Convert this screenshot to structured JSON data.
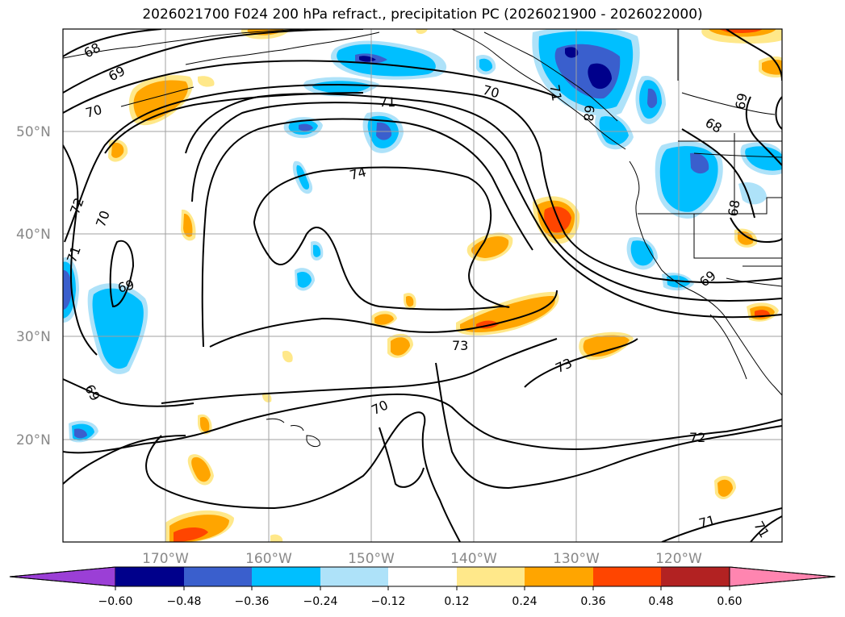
{
  "title": "2026021700 F024 200 hPa refract., precipitation PC (2026021900 - 2026022000)",
  "lat_labels": [
    "50°N",
    "40°N",
    "30°N",
    "20°N"
  ],
  "lon_labels": [
    "170°W",
    "160°W",
    "150°W",
    "140°W",
    "130°W",
    "120°W"
  ],
  "colorbar": {
    "tick_labels": [
      "−0.60",
      "−0.48",
      "−0.36",
      "−0.24",
      "−0.12",
      "0.12",
      "0.24",
      "0.36",
      "0.48",
      "0.60"
    ],
    "colors": [
      "#9b3fd6",
      "#00008b",
      "#3a5fcd",
      "#00bfff",
      "#aee2f9",
      "#ffffff",
      "#ffe88a",
      "#ffa500",
      "#ff4500",
      "#b22222",
      "#ff85b0"
    ]
  },
  "contour_labels": [
    {
      "text": "68"
    },
    {
      "text": "69"
    },
    {
      "text": "70"
    },
    {
      "text": "71"
    },
    {
      "text": "70"
    },
    {
      "text": "74"
    },
    {
      "text": "72"
    },
    {
      "text": "70"
    },
    {
      "text": "71"
    },
    {
      "text": "69"
    },
    {
      "text": "69"
    },
    {
      "text": "73"
    },
    {
      "text": "73"
    },
    {
      "text": "70"
    },
    {
      "text": "72"
    },
    {
      "text": "71"
    },
    {
      "text": "68"
    },
    {
      "text": "68"
    },
    {
      "text": "69"
    },
    {
      "text": "69"
    },
    {
      "text": "68"
    },
    {
      "text": "71"
    },
    {
      "text": "71"
    }
  ]
}
